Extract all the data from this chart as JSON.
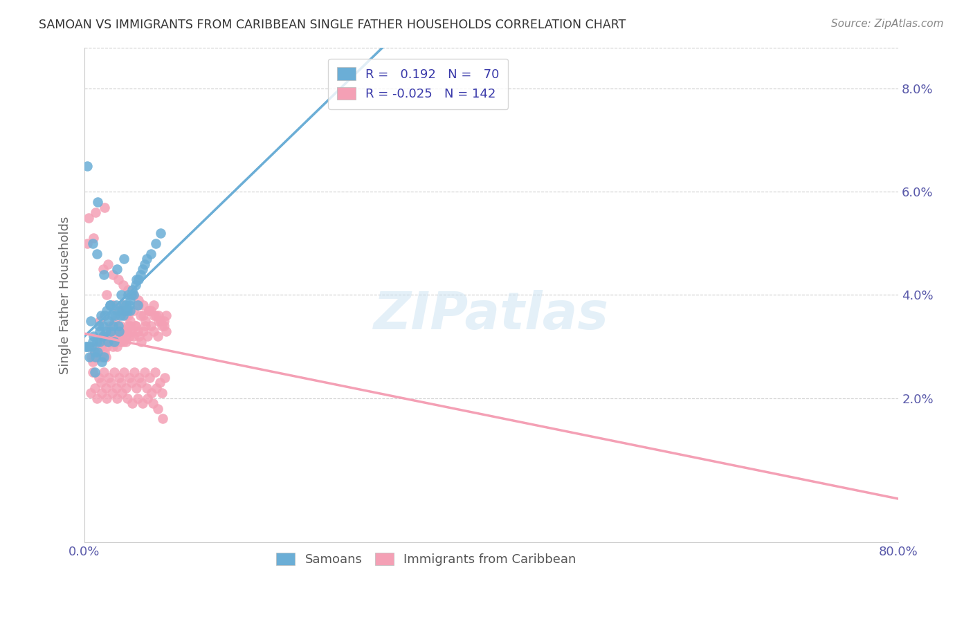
{
  "title": "SAMOAN VS IMMIGRANTS FROM CARIBBEAN SINGLE FATHER HOUSEHOLDS CORRELATION CHART",
  "source": "Source: ZipAtlas.com",
  "ylabel": "Single Father Households",
  "x_min": 0.0,
  "x_max": 0.8,
  "y_min": -0.008,
  "y_max": 0.088,
  "samoan_color": "#6baed6",
  "caribbean_color": "#f4a0b5",
  "samoan_R": 0.192,
  "samoan_N": 70,
  "caribbean_R": -0.025,
  "caribbean_N": 142,
  "watermark": "ZIPatlas",
  "legend_labels": [
    "Samoans",
    "Immigrants from Caribbean"
  ],
  "samoan_x": [
    0.001,
    0.002,
    0.003,
    0.004,
    0.005,
    0.006,
    0.007,
    0.008,
    0.009,
    0.01,
    0.01,
    0.011,
    0.012,
    0.013,
    0.013,
    0.014,
    0.015,
    0.015,
    0.016,
    0.017,
    0.018,
    0.018,
    0.019,
    0.02,
    0.021,
    0.022,
    0.023,
    0.024,
    0.025,
    0.026,
    0.027,
    0.028,
    0.029,
    0.03,
    0.031,
    0.032,
    0.033,
    0.034,
    0.035,
    0.036,
    0.037,
    0.038,
    0.039,
    0.04,
    0.041,
    0.042,
    0.043,
    0.044,
    0.045,
    0.046,
    0.047,
    0.048,
    0.05,
    0.051,
    0.053,
    0.055,
    0.057,
    0.059,
    0.061,
    0.065,
    0.07,
    0.075,
    0.008,
    0.012,
    0.019,
    0.025,
    0.032,
    0.039,
    0.045,
    0.052
  ],
  "samoan_y": [
    0.03,
    0.03,
    0.065,
    0.03,
    0.028,
    0.035,
    0.03,
    0.031,
    0.032,
    0.025,
    0.029,
    0.028,
    0.031,
    0.058,
    0.029,
    0.034,
    0.031,
    0.033,
    0.036,
    0.027,
    0.032,
    0.034,
    0.028,
    0.036,
    0.033,
    0.037,
    0.031,
    0.035,
    0.038,
    0.033,
    0.036,
    0.034,
    0.031,
    0.036,
    0.038,
    0.037,
    0.034,
    0.033,
    0.036,
    0.04,
    0.037,
    0.036,
    0.038,
    0.037,
    0.038,
    0.037,
    0.04,
    0.038,
    0.039,
    0.04,
    0.041,
    0.04,
    0.042,
    0.043,
    0.043,
    0.044,
    0.045,
    0.046,
    0.047,
    0.048,
    0.05,
    0.052,
    0.05,
    0.048,
    0.044,
    0.038,
    0.045,
    0.047,
    0.037,
    0.038
  ],
  "caribbean_x": [
    0.005,
    0.007,
    0.008,
    0.009,
    0.01,
    0.011,
    0.012,
    0.013,
    0.014,
    0.015,
    0.016,
    0.017,
    0.018,
    0.019,
    0.02,
    0.021,
    0.022,
    0.023,
    0.024,
    0.025,
    0.026,
    0.027,
    0.028,
    0.029,
    0.03,
    0.031,
    0.032,
    0.033,
    0.034,
    0.035,
    0.036,
    0.037,
    0.038,
    0.039,
    0.04,
    0.041,
    0.042,
    0.043,
    0.044,
    0.045,
    0.046,
    0.048,
    0.05,
    0.052,
    0.054,
    0.056,
    0.058,
    0.06,
    0.062,
    0.065,
    0.068,
    0.072,
    0.076,
    0.08,
    0.015,
    0.02,
    0.025,
    0.03,
    0.035,
    0.04,
    0.045,
    0.05,
    0.055,
    0.06,
    0.065,
    0.07,
    0.075,
    0.08,
    0.022,
    0.028,
    0.033,
    0.038,
    0.043,
    0.048,
    0.053,
    0.058,
    0.063,
    0.068,
    0.073,
    0.078,
    0.008,
    0.014,
    0.019,
    0.024,
    0.029,
    0.034,
    0.039,
    0.044,
    0.049,
    0.054,
    0.059,
    0.064,
    0.069,
    0.074,
    0.079,
    0.01,
    0.016,
    0.021,
    0.026,
    0.031,
    0.036,
    0.041,
    0.046,
    0.051,
    0.056,
    0.061,
    0.066,
    0.071,
    0.076,
    0.006,
    0.012,
    0.017,
    0.022,
    0.027,
    0.032,
    0.037,
    0.042,
    0.047,
    0.052,
    0.057,
    0.062,
    0.067,
    0.072,
    0.077,
    0.003,
    0.009,
    0.018,
    0.023,
    0.028,
    0.033,
    0.038,
    0.043,
    0.048,
    0.053,
    0.058,
    0.063,
    0.068,
    0.073,
    0.078,
    0.004,
    0.011,
    0.02
  ],
  "caribbean_y": [
    0.03,
    0.028,
    0.027,
    0.028,
    0.029,
    0.028,
    0.03,
    0.028,
    0.029,
    0.031,
    0.03,
    0.028,
    0.032,
    0.031,
    0.029,
    0.028,
    0.03,
    0.031,
    0.032,
    0.033,
    0.032,
    0.031,
    0.03,
    0.031,
    0.032,
    0.031,
    0.03,
    0.032,
    0.033,
    0.031,
    0.033,
    0.032,
    0.031,
    0.033,
    0.032,
    0.031,
    0.033,
    0.034,
    0.032,
    0.034,
    0.033,
    0.032,
    0.034,
    0.033,
    0.032,
    0.031,
    0.033,
    0.034,
    0.032,
    0.034,
    0.033,
    0.032,
    0.034,
    0.033,
    0.035,
    0.036,
    0.034,
    0.035,
    0.034,
    0.036,
    0.035,
    0.034,
    0.036,
    0.035,
    0.037,
    0.036,
    0.035,
    0.036,
    0.04,
    0.038,
    0.037,
    0.038,
    0.036,
    0.037,
    0.038,
    0.036,
    0.037,
    0.038,
    0.036,
    0.035,
    0.025,
    0.024,
    0.025,
    0.024,
    0.025,
    0.024,
    0.025,
    0.024,
    0.025,
    0.024,
    0.025,
    0.024,
    0.025,
    0.023,
    0.024,
    0.022,
    0.023,
    0.022,
    0.023,
    0.022,
    0.023,
    0.022,
    0.023,
    0.022,
    0.023,
    0.022,
    0.021,
    0.022,
    0.021,
    0.021,
    0.02,
    0.021,
    0.02,
    0.021,
    0.02,
    0.021,
    0.02,
    0.019,
    0.02,
    0.019,
    0.02,
    0.019,
    0.018,
    0.016,
    0.05,
    0.051,
    0.045,
    0.046,
    0.044,
    0.043,
    0.042,
    0.041,
    0.04,
    0.039,
    0.038,
    0.037,
    0.036,
    0.035,
    0.034,
    0.055,
    0.056,
    0.057
  ]
}
